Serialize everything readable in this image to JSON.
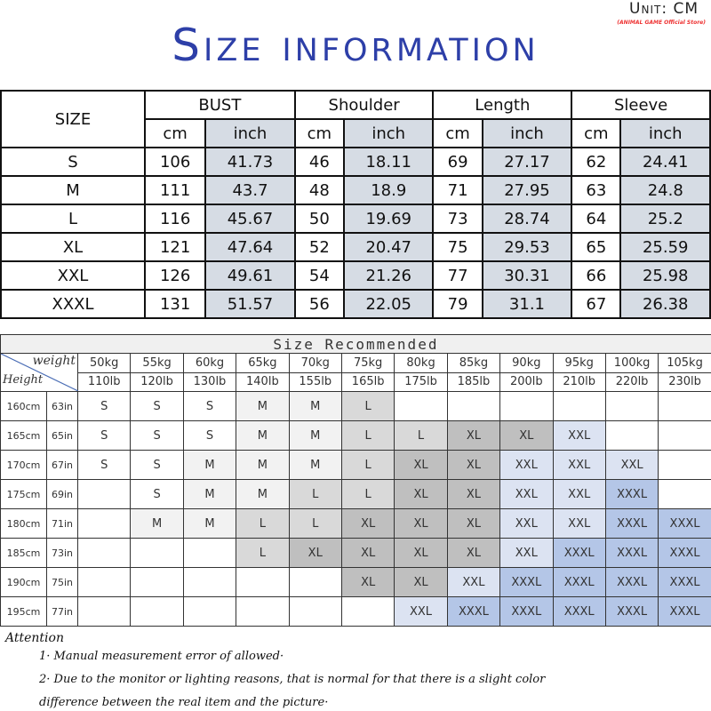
{
  "header": {
    "title": "Size information",
    "unit": "Unit: CM",
    "store": "(ANIMAL GAME Official Store)",
    "watermark": "ANIMAL GAME Official Store"
  },
  "size_table": {
    "size_label": "SIZE",
    "groups": [
      "BUST",
      "Shoulder",
      "Length",
      "Sleeve"
    ],
    "sub": [
      "cm",
      "inch"
    ],
    "rows": [
      [
        "S",
        "106",
        "41.73",
        "46",
        "18.11",
        "69",
        "27.17",
        "62",
        "24.41"
      ],
      [
        "M",
        "111",
        "43.7",
        "48",
        "18.9",
        "71",
        "27.95",
        "63",
        "24.8"
      ],
      [
        "L",
        "116",
        "45.67",
        "50",
        "19.69",
        "73",
        "28.74",
        "64",
        "25.2"
      ],
      [
        "XL",
        "121",
        "47.64",
        "52",
        "20.47",
        "75",
        "29.53",
        "65",
        "25.59"
      ],
      [
        "XXL",
        "126",
        "49.61",
        "54",
        "21.26",
        "77",
        "30.31",
        "66",
        "25.98"
      ],
      [
        "XXXL",
        "131",
        "51.57",
        "56",
        "22.05",
        "79",
        "31.1",
        "67",
        "26.38"
      ]
    ]
  },
  "recommend": {
    "title": "Size Recommended",
    "weight_label": "weight",
    "height_label": "Height",
    "kg": [
      "50kg",
      "55kg",
      "60kg",
      "65kg",
      "70kg",
      "75kg",
      "80kg",
      "85kg",
      "90kg",
      "95kg",
      "100kg",
      "105kg"
    ],
    "lb": [
      "110lb",
      "120lb",
      "130lb",
      "140lb",
      "155lb",
      "165lb",
      "175lb",
      "185lb",
      "200lb",
      "210lb",
      "220lb",
      "230lb"
    ],
    "rows": [
      {
        "cm": "160cm",
        "in": "63in",
        "sizes": [
          "S",
          "S",
          "S",
          "M",
          "M",
          "L",
          "",
          "",
          "",
          "",
          "",
          ""
        ]
      },
      {
        "cm": "165cm",
        "in": "65in",
        "sizes": [
          "S",
          "S",
          "S",
          "M",
          "M",
          "L",
          "L",
          "XL",
          "XL",
          "XXL",
          "",
          ""
        ]
      },
      {
        "cm": "170cm",
        "in": "67in",
        "sizes": [
          "S",
          "S",
          "M",
          "M",
          "M",
          "L",
          "XL",
          "XL",
          "XXL",
          "XXL",
          "XXL",
          ""
        ]
      },
      {
        "cm": "175cm",
        "in": "69in",
        "sizes": [
          "",
          "S",
          "M",
          "M",
          "L",
          "L",
          "XL",
          "XL",
          "XXL",
          "XXL",
          "XXXL",
          ""
        ]
      },
      {
        "cm": "180cm",
        "in": "71in",
        "sizes": [
          "",
          "M",
          "M",
          "L",
          "L",
          "XL",
          "XL",
          "XL",
          "XXL",
          "XXL",
          "XXXL",
          "XXXL"
        ]
      },
      {
        "cm": "185cm",
        "in": "73in",
        "sizes": [
          "",
          "",
          "",
          "L",
          "XL",
          "XL",
          "XL",
          "XL",
          "XXL",
          "XXXL",
          "XXXL",
          "XXXL"
        ]
      },
      {
        "cm": "190cm",
        "in": "75in",
        "sizes": [
          "",
          "",
          "",
          "",
          "",
          "XL",
          "XL",
          "XXL",
          "XXXL",
          "XXXL",
          "XXXL",
          "XXXL"
        ]
      },
      {
        "cm": "195cm",
        "in": "77in",
        "sizes": [
          "",
          "",
          "",
          "",
          "",
          "",
          "XXL",
          "XXXL",
          "XXXL",
          "XXXL",
          "XXXL",
          "XXXL"
        ]
      }
    ]
  },
  "attention": {
    "title": "Attention",
    "notes": [
      "1· Manual measurement error of allowed·",
      "2·  Due to the monitor or lighting reasons, that is normal for that there is a slight color",
      "difference between the real item and the picture·"
    ]
  },
  "colors": {
    "title": "#2d3fa8",
    "inch_bg": "#d6dce4",
    "S": "#ffffff",
    "M": "#f2f2f2",
    "L": "#d9d9d9",
    "XL": "#bfbfbf",
    "XXL": "#dce3f2",
    "XXXL": "#b4c6e7"
  }
}
